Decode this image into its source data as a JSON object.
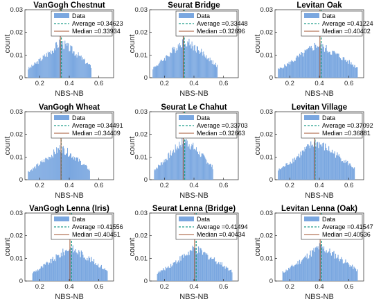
{
  "chart_data": [
    {
      "type": "bar",
      "title": "VanGogh Chestnut",
      "xlabel": "NBS-NB",
      "ylabel": "count",
      "xlim": [
        0.1,
        0.7
      ],
      "ylim": [
        0,
        0.03
      ],
      "xticks": [
        "0.2",
        "0.4",
        "0.6"
      ],
      "yticks": [
        "0",
        "0.01",
        "0.02",
        "0.03"
      ],
      "legend": {
        "placement": "top-right",
        "data": "Data",
        "average": "Average =0.34623",
        "median": "Median =0.33934"
      },
      "average": 0.34623,
      "median": 0.33934,
      "support": [
        0.12,
        0.55
      ],
      "peak": 0.0155,
      "peak_at": 0.34,
      "colors": {
        "bar": "#7aa7e0",
        "average": "#1f9e8a",
        "median": "#a0522d"
      }
    },
    {
      "type": "bar",
      "title": "Seurat Bridge",
      "xlabel": "NBS-NB",
      "ylabel": "count",
      "xlim": [
        0.1,
        0.7
      ],
      "ylim": [
        0,
        0.03
      ],
      "xticks": [
        "0.2",
        "0.4",
        "0.6"
      ],
      "yticks": [
        "0",
        "0.01",
        "0.02",
        "0.03"
      ],
      "legend": {
        "placement": "top-right",
        "data": "Data",
        "average": "Average =0.33448",
        "median": "Median =0.32696"
      },
      "average": 0.33448,
      "median": 0.32696,
      "support": [
        0.12,
        0.56
      ],
      "peak": 0.0165,
      "peak_at": 0.33,
      "colors": {
        "bar": "#7aa7e0",
        "average": "#1f9e8a",
        "median": "#a0522d"
      }
    },
    {
      "type": "bar",
      "title": "Levitan Oak",
      "xlabel": "NBS-NB",
      "ylabel": "count",
      "xlim": [
        0.1,
        0.7
      ],
      "ylim": [
        0,
        0.03
      ],
      "xticks": [
        "0.2",
        "0.4",
        "0.6"
      ],
      "yticks": [
        "0",
        "0.01",
        "0.02",
        "0.03"
      ],
      "legend": {
        "placement": "top-right",
        "data": "Data",
        "average": "Average =0.41224",
        "median": "Median =0.40402"
      },
      "average": 0.41224,
      "median": 0.40402,
      "support": [
        0.12,
        0.66
      ],
      "peak": 0.0145,
      "peak_at": 0.38,
      "colors": {
        "bar": "#7aa7e0",
        "average": "#1f9e8a",
        "median": "#a0522d"
      }
    },
    {
      "type": "bar",
      "title": "VanGogh Wheat",
      "xlabel": "NBS-NB",
      "ylabel": "count",
      "xlim": [
        0.1,
        0.7
      ],
      "ylim": [
        0,
        0.03
      ],
      "xticks": [
        "0.2",
        "0.4",
        "0.6"
      ],
      "yticks": [
        "0",
        "0.01",
        "0.02",
        "0.03"
      ],
      "legend": {
        "placement": "top-right",
        "data": "Data",
        "average": "Average =0.34491",
        "median": "Median =0.34409"
      },
      "average": 0.34491,
      "median": 0.34409,
      "support": [
        0.12,
        0.54
      ],
      "peak": 0.014,
      "peak_at": 0.34,
      "colors": {
        "bar": "#7aa7e0",
        "average": "#1f9e8a",
        "median": "#a0522d"
      }
    },
    {
      "type": "bar",
      "title": "Seurat Le Chahut",
      "xlabel": "NBS-NB",
      "ylabel": "count",
      "xlim": [
        0.1,
        0.7
      ],
      "ylim": [
        0,
        0.03
      ],
      "xticks": [
        "0.2",
        "0.4",
        "0.6"
      ],
      "yticks": [
        "0",
        "0.01",
        "0.02",
        "0.03"
      ],
      "legend": {
        "placement": "top-right",
        "data": "Data",
        "average": "Average =0.33703",
        "median": "Median =0.32663"
      },
      "average": 0.33703,
      "median": 0.32663,
      "support": [
        0.13,
        0.53
      ],
      "peak": 0.0175,
      "peak_at": 0.33,
      "colors": {
        "bar": "#7aa7e0",
        "average": "#1f9e8a",
        "median": "#a0522d"
      }
    },
    {
      "type": "bar",
      "title": "Levitan Village",
      "xlabel": "NBS-NB",
      "ylabel": "count",
      "xlim": [
        0.1,
        0.7
      ],
      "ylim": [
        0,
        0.03
      ],
      "xticks": [
        "0.2",
        "0.4",
        "0.6"
      ],
      "yticks": [
        "0",
        "0.01",
        "0.02",
        "0.03"
      ],
      "legend": {
        "placement": "top-right",
        "data": "Data",
        "average": "Average =0.37092",
        "median": "Median =0.36881"
      },
      "average": 0.37092,
      "median": 0.36881,
      "support": [
        0.12,
        0.64
      ],
      "peak": 0.0165,
      "peak_at": 0.37,
      "colors": {
        "bar": "#7aa7e0",
        "average": "#1f9e8a",
        "median": "#a0522d"
      }
    },
    {
      "type": "bar",
      "title": "VanGogh Lenna (Iris)",
      "xlabel": "NBS-NB",
      "ylabel": "count",
      "xlim": [
        0.1,
        0.7
      ],
      "ylim": [
        0,
        0.03
      ],
      "xticks": [
        "0.2",
        "0.4",
        "0.6"
      ],
      "yticks": [
        "0",
        "0.01",
        "0.02",
        "0.03"
      ],
      "legend": {
        "placement": "top-right",
        "data": "Data",
        "average": "Average =0.41556",
        "median": "Median =0.40451"
      },
      "average": 0.41556,
      "median": 0.40451,
      "support": [
        0.15,
        0.66
      ],
      "peak": 0.0145,
      "peak_at": 0.4,
      "colors": {
        "bar": "#7aa7e0",
        "average": "#1f9e8a",
        "median": "#a0522d"
      }
    },
    {
      "type": "bar",
      "title": "Seurat Lenna (Bridge)",
      "xlabel": "NBS-NB",
      "ylabel": "count",
      "xlim": [
        0.1,
        0.7
      ],
      "ylim": [
        0,
        0.03
      ],
      "xticks": [
        "0.2",
        "0.4",
        "0.6"
      ],
      "yticks": [
        "0",
        "0.01",
        "0.02",
        "0.03"
      ],
      "legend": {
        "placement": "top-right",
        "data": "Data",
        "average": "Average =0.41494",
        "median": "Median =0.40434"
      },
      "average": 0.41494,
      "median": 0.40434,
      "support": [
        0.15,
        0.66
      ],
      "peak": 0.014,
      "peak_at": 0.4,
      "colors": {
        "bar": "#7aa7e0",
        "average": "#1f9e8a",
        "median": "#a0522d"
      }
    },
    {
      "type": "bar",
      "title": "Levitan Lenna (Oak)",
      "xlabel": "NBS-NB",
      "ylabel": "count",
      "xlim": [
        0.1,
        0.7
      ],
      "ylim": [
        0,
        0.03
      ],
      "xticks": [
        "0.2",
        "0.4",
        "0.6"
      ],
      "yticks": [
        "0",
        "0.01",
        "0.02",
        "0.03"
      ],
      "legend": {
        "placement": "top-right",
        "data": "Data",
        "average": "Average =0.41547",
        "median": "Median =0.40536"
      },
      "average": 0.41547,
      "median": 0.40536,
      "support": [
        0.15,
        0.66
      ],
      "peak": 0.015,
      "peak_at": 0.4,
      "colors": {
        "bar": "#7aa7e0",
        "average": "#1f9e8a",
        "median": "#a0522d"
      }
    }
  ]
}
